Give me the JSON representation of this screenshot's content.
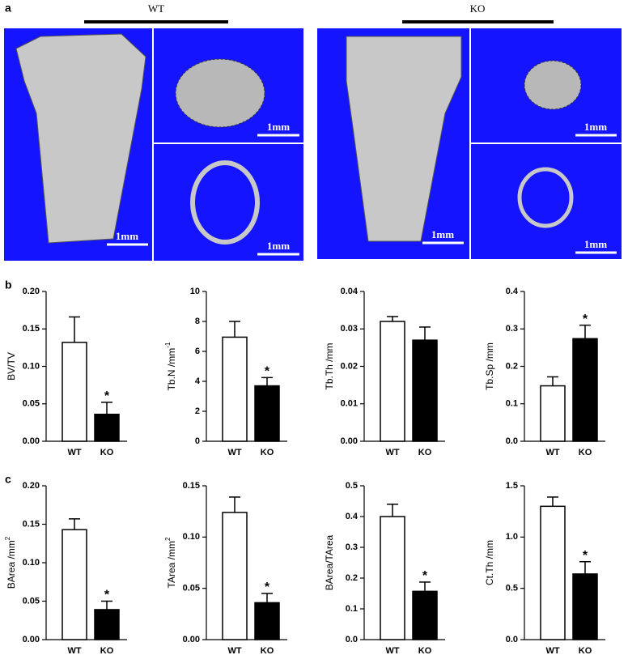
{
  "panel_labels": [
    "a",
    "b",
    "c"
  ],
  "images": [
    {
      "group": "WT",
      "scale_bars": [
        "1mm",
        "1mm",
        "1mm"
      ]
    },
    {
      "group": "KO",
      "scale_bars": [
        "1mm",
        "1mm",
        "1mm"
      ]
    }
  ],
  "chart_data": [
    {
      "type": "bar",
      "ylabel": "BV/TV",
      "categories": [
        "WT",
        "KO"
      ],
      "values": [
        0.132,
        0.036
      ],
      "errors": [
        0.034,
        0.016
      ],
      "value_annotations": [
        null,
        "*"
      ],
      "colors": [
        "#ffffff",
        "#000000"
      ],
      "ylim": [
        0,
        0.2
      ],
      "yticks": [
        {
          "value": 0,
          "label": "0.00"
        },
        0.05,
        {
          "value": 0.1,
          "label": "0.10"
        },
        0.15,
        {
          "value": 0.2,
          "label": "0.20"
        }
      ]
    },
    {
      "type": "bar",
      "ylabel": "Tb.N /mm",
      "ylabel_sup": "-1",
      "categories": [
        "WT",
        "KO"
      ],
      "values": [
        6.95,
        3.7
      ],
      "errors": [
        1.05,
        0.55
      ],
      "value_annotations": [
        null,
        "*"
      ],
      "colors": [
        "#ffffff",
        "#000000"
      ],
      "ylim": [
        0,
        10
      ],
      "yticks": [
        0,
        2,
        4,
        6,
        8,
        10
      ]
    },
    {
      "type": "bar",
      "ylabel": "Tb.Th /mm",
      "categories": [
        "WT",
        "KO"
      ],
      "values": [
        0.032,
        0.027
      ],
      "errors": [
        0.0013,
        0.0035
      ],
      "colors": [
        "#ffffff",
        "#000000"
      ],
      "ylim": [
        0,
        0.04
      ],
      "yticks": [
        {
          "value": 0,
          "label": "0.00"
        },
        0.01,
        0.02,
        0.03,
        0.04
      ]
    },
    {
      "type": "bar",
      "ylabel": "Tb.Sp /mm",
      "categories": [
        "WT",
        "KO"
      ],
      "values": [
        0.148,
        0.274
      ],
      "errors": [
        0.024,
        0.036
      ],
      "value_annotations": [
        null,
        "*"
      ],
      "colors": [
        "#ffffff",
        "#000000"
      ],
      "ylim": [
        0,
        0.4
      ],
      "yticks": [
        {
          "value": 0,
          "label": "0.0"
        },
        0.1,
        0.2,
        0.3,
        0.4
      ]
    },
    {
      "type": "bar",
      "ylabel": "BArea /mm",
      "ylabel_sup": "2",
      "categories": [
        "WT",
        "KO"
      ],
      "values": [
        0.143,
        0.039
      ],
      "errors": [
        0.014,
        0.011
      ],
      "value_annotations": [
        null,
        "*"
      ],
      "colors": [
        "#ffffff",
        "#000000"
      ],
      "ylim": [
        0,
        0.2
      ],
      "yticks": [
        {
          "value": 0,
          "label": "0.00"
        },
        0.05,
        {
          "value": 0.1,
          "label": "0.10"
        },
        0.15,
        {
          "value": 0.2,
          "label": "0.20"
        }
      ]
    },
    {
      "type": "bar",
      "ylabel": "TArea /mm",
      "ylabel_sup": "2",
      "categories": [
        "WT",
        "KO"
      ],
      "values": [
        0.124,
        0.036
      ],
      "errors": [
        0.015,
        0.009
      ],
      "value_annotations": [
        null,
        "*"
      ],
      "colors": [
        "#ffffff",
        "#000000"
      ],
      "ylim": [
        0,
        0.15
      ],
      "yticks": [
        {
          "value": 0,
          "label": "0.00"
        },
        0.05,
        {
          "value": 0.1,
          "label": "0.10"
        },
        0.15
      ]
    },
    {
      "type": "bar",
      "ylabel": "BArea/TArea",
      "categories": [
        "WT",
        "KO"
      ],
      "values": [
        0.4,
        0.157
      ],
      "errors": [
        0.04,
        0.03
      ],
      "value_annotations": [
        null,
        "*"
      ],
      "colors": [
        "#ffffff",
        "#000000"
      ],
      "ylim": [
        0,
        0.5
      ],
      "yticks": [
        {
          "value": 0,
          "label": "0.0"
        },
        0.1,
        0.2,
        0.3,
        0.4,
        0.5
      ]
    },
    {
      "type": "bar",
      "ylabel": "Ct.Th /mm",
      "categories": [
        "WT",
        "KO"
      ],
      "values": [
        1.3,
        0.64
      ],
      "errors": [
        0.09,
        0.12
      ],
      "value_annotations": [
        null,
        "*"
      ],
      "colors": [
        "#ffffff",
        "#000000"
      ],
      "ylim": [
        0,
        1.5
      ],
      "yticks": [
        {
          "value": 0,
          "label": "0.0"
        },
        0.5,
        {
          "value": 1,
          "label": "1.0"
        },
        1.5
      ]
    }
  ]
}
